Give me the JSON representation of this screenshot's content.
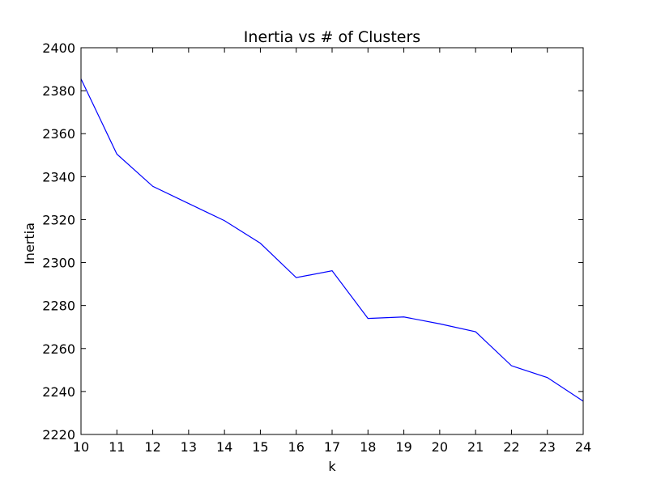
{
  "chart_data": {
    "type": "line",
    "title": "Inertia vs # of Clusters",
    "xlabel": "k",
    "ylabel": "Inertia",
    "xlim": [
      10,
      24
    ],
    "ylim": [
      2220,
      2400
    ],
    "grid": false,
    "x_ticks": [
      10,
      11,
      12,
      13,
      14,
      15,
      16,
      17,
      18,
      19,
      20,
      21,
      22,
      23,
      24
    ],
    "y_ticks": [
      2220,
      2240,
      2260,
      2280,
      2300,
      2320,
      2340,
      2360,
      2380,
      2400
    ],
    "series": [
      {
        "color": "#0000ff",
        "x": [
          10,
          11,
          12,
          13,
          14,
          15,
          16,
          17,
          18,
          19,
          20,
          21,
          22,
          23,
          24
        ],
        "y": [
          2385.5,
          2350.5,
          2335.5,
          2327.5,
          2319.5,
          2309.0,
          2293.0,
          2296.2,
          2274.0,
          2274.7,
          2271.5,
          2267.8,
          2252.0,
          2246.5,
          2235.5
        ]
      }
    ]
  }
}
